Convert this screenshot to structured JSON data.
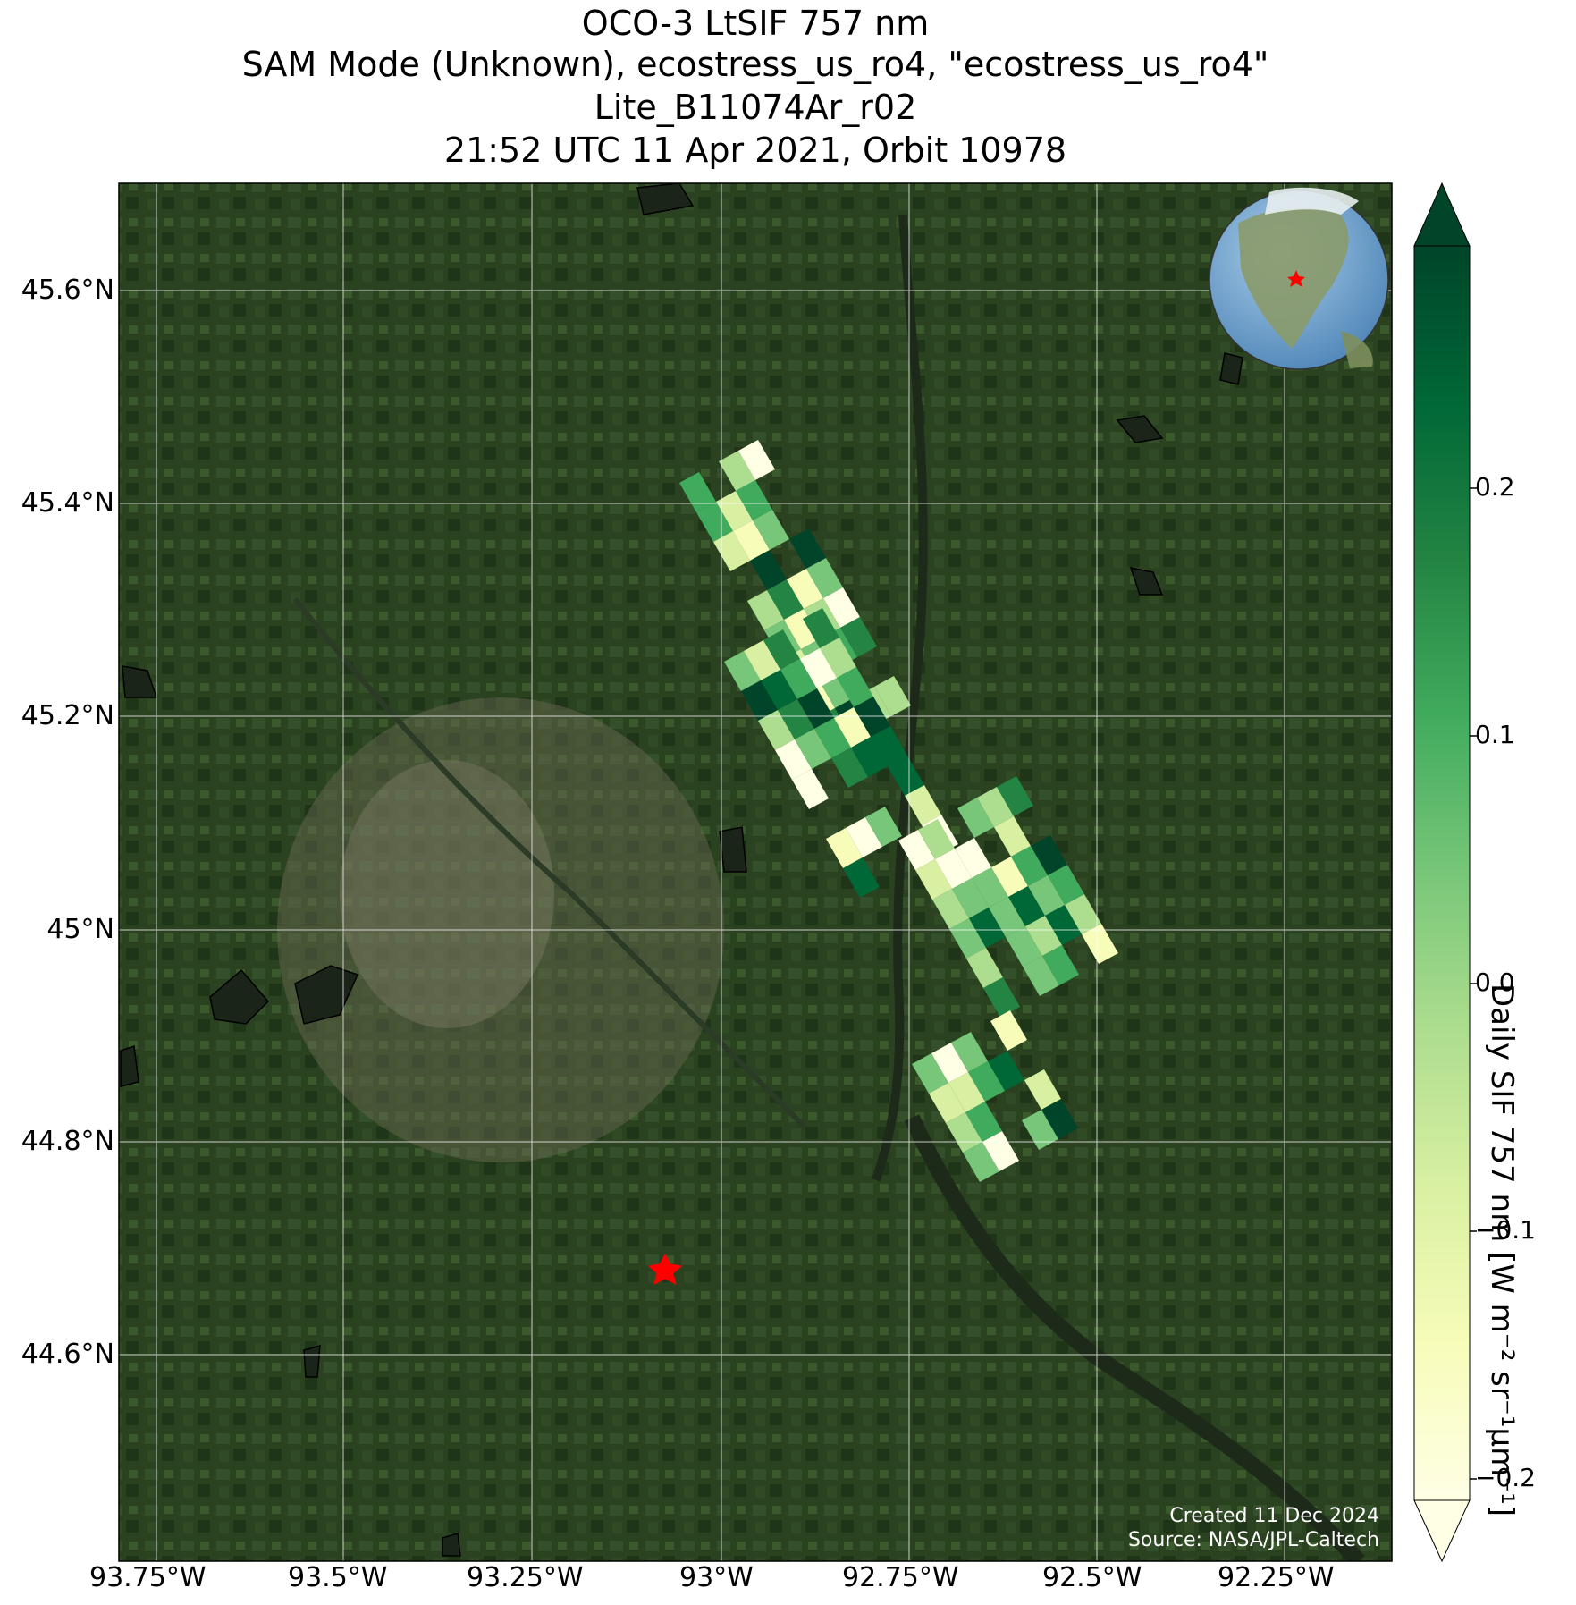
{
  "title": {
    "line1": "OCO-3 LtSIF 757 nm",
    "line2": "SAM Mode (Unknown), ecostress_us_ro4, \"ecostress_us_ro4\"",
    "line3": "Lite_B11074Ar_r02",
    "line4": "21:52 UTC 11 Apr 2021, Orbit 10978"
  },
  "map": {
    "lat_ticks": [
      "45.6°N",
      "45.4°N",
      "45.2°N",
      "45°N",
      "44.8°N",
      "44.6°N"
    ],
    "lon_ticks": [
      "93.75°W",
      "93.5°W",
      "93.25°W",
      "93°W",
      "92.75°W",
      "92.5°W",
      "92.25°W"
    ],
    "background": "satellite imagery",
    "inset": "orthographic globe with red star location marker",
    "target_marker": "red-star-icon"
  },
  "colorbar": {
    "label": "Daily SIF 757 nm [W m⁻² sr⁻¹μm⁻¹]",
    "ticks": [
      "0.2",
      "0.1",
      "0.0",
      "−0.1",
      "−0.2"
    ],
    "colormap": "YlGn",
    "range": [
      -0.22,
      0.28
    ],
    "extend": "both"
  },
  "credits": {
    "created": "Created 11 Dec 2024",
    "source": "Source: NASA/JPL-Caltech"
  },
  "colors": {
    "ylgn": [
      "#ffffe5",
      "#f7fcb9",
      "#d9f0a3",
      "#addd8e",
      "#78c679",
      "#41ab5d",
      "#238443",
      "#006837",
      "#004529"
    ],
    "land_dark": "#24391c",
    "target_star": "#ff0000"
  }
}
